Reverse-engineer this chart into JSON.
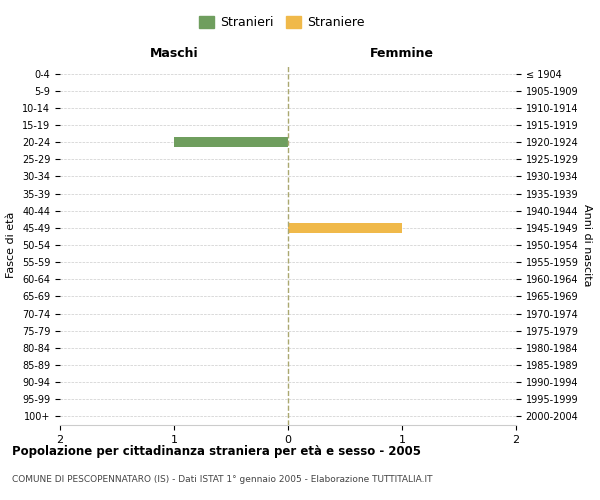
{
  "age_groups": [
    "0-4",
    "5-9",
    "10-14",
    "15-19",
    "20-24",
    "25-29",
    "30-34",
    "35-39",
    "40-44",
    "45-49",
    "50-54",
    "55-59",
    "60-64",
    "65-69",
    "70-74",
    "75-79",
    "80-84",
    "85-89",
    "90-94",
    "95-99",
    "100+"
  ],
  "birth_years": [
    "2000-2004",
    "1995-1999",
    "1990-1994",
    "1985-1989",
    "1980-1984",
    "1975-1979",
    "1970-1974",
    "1965-1969",
    "1960-1964",
    "1955-1959",
    "1950-1954",
    "1945-1949",
    "1940-1944",
    "1935-1939",
    "1930-1934",
    "1925-1929",
    "1920-1924",
    "1915-1919",
    "1910-1914",
    "1905-1909",
    "≤ 1904"
  ],
  "males": [
    0,
    0,
    0,
    0,
    1,
    0,
    0,
    0,
    0,
    0,
    0,
    0,
    0,
    0,
    0,
    0,
    0,
    0,
    0,
    0,
    0
  ],
  "females": [
    0,
    0,
    0,
    0,
    0,
    0,
    0,
    0,
    0,
    1,
    0,
    0,
    0,
    0,
    0,
    0,
    0,
    0,
    0,
    0,
    0
  ],
  "male_color": "#6f9e5e",
  "female_color": "#f0b94a",
  "title": "Popolazione per cittadinanza straniera per età e sesso - 2005",
  "subtitle": "COMUNE DI PESCOPENNATARO (IS) - Dati ISTAT 1° gennaio 2005 - Elaborazione TUTTITALIA.IT",
  "left_label": "Maschi",
  "right_label": "Femmine",
  "ylabel_left": "Fasce di età",
  "ylabel_right": "Anni di nascita",
  "legend_male": "Stranieri",
  "legend_female": "Straniere",
  "xlim": [
    -2,
    2
  ],
  "xticks": [
    -2,
    -1,
    0,
    1,
    2
  ],
  "xticklabels": [
    "2",
    "1",
    "0",
    "1",
    "2"
  ],
  "background_color": "#ffffff",
  "grid_color": "#cccccc"
}
